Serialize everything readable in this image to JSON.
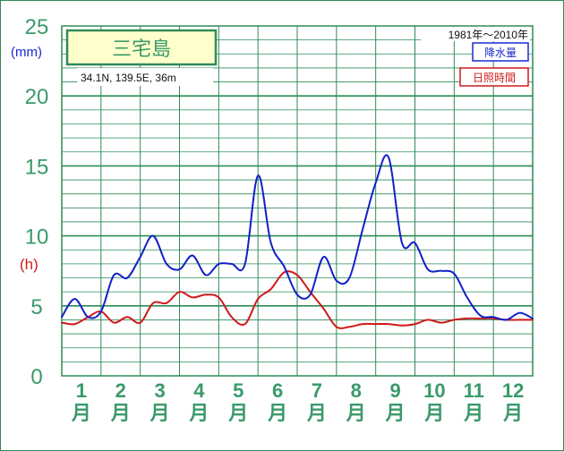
{
  "chart_data": {
    "type": "line",
    "title": "三宅島",
    "location": "34.1N, 139.5E, 36m",
    "period": "1981年〜2010年",
    "y_unit_precip": "(mm)",
    "y_unit_sun": "(h)",
    "ylim": [
      0,
      25
    ],
    "y_ticks": [
      "0",
      "5",
      "10",
      "15",
      "20",
      "25"
    ],
    "months": [
      "1",
      "2",
      "3",
      "4",
      "5",
      "6",
      "7",
      "8",
      "9",
      "10",
      "11",
      "12"
    ],
    "month_char": "月",
    "x": [
      0.0,
      0.33,
      0.67,
      1.0,
      1.33,
      1.67,
      2.0,
      2.33,
      2.67,
      3.0,
      3.33,
      3.67,
      4.0,
      4.33,
      4.67,
      5.0,
      5.33,
      5.67,
      6.0,
      6.33,
      6.67,
      7.0,
      7.33,
      7.67,
      8.0,
      8.33,
      8.67,
      9.0,
      9.33,
      9.67,
      10.0,
      10.33,
      10.67,
      11.0,
      11.33,
      11.67,
      12.0
    ],
    "series": [
      {
        "name": "降水量",
        "color": "#1020c8",
        "values": [
          4.2,
          5.5,
          4.2,
          4.6,
          7.2,
          7.0,
          8.5,
          10.0,
          8.0,
          7.6,
          8.6,
          7.2,
          8.0,
          8.0,
          8.0,
          14.3,
          9.5,
          7.8,
          5.8,
          5.8,
          8.5,
          6.8,
          7.0,
          10.5,
          13.8,
          15.6,
          9.5,
          9.5,
          7.6,
          7.5,
          7.3,
          5.6,
          4.3,
          4.2,
          4.0,
          4.5,
          4.1
        ],
        "style": "rounded-fill"
      },
      {
        "name": "日照時間",
        "color": "#d01a1a",
        "values": [
          3.8,
          3.7,
          4.2,
          4.6,
          3.8,
          4.2,
          3.8,
          5.2,
          5.2,
          6.0,
          5.6,
          5.8,
          5.6,
          4.2,
          3.7,
          5.5,
          6.2,
          7.4,
          7.2,
          6.0,
          4.8,
          3.5,
          3.5,
          3.7,
          3.7,
          3.7,
          3.6,
          3.7,
          4.0,
          3.8,
          4.0,
          4.1,
          4.1,
          4.1,
          4.0,
          4.0,
          4.0
        ],
        "style": "smooth"
      }
    ],
    "legend": [
      "降水量",
      "日照時間"
    ],
    "legend_position": "top-right",
    "grid": true
  }
}
